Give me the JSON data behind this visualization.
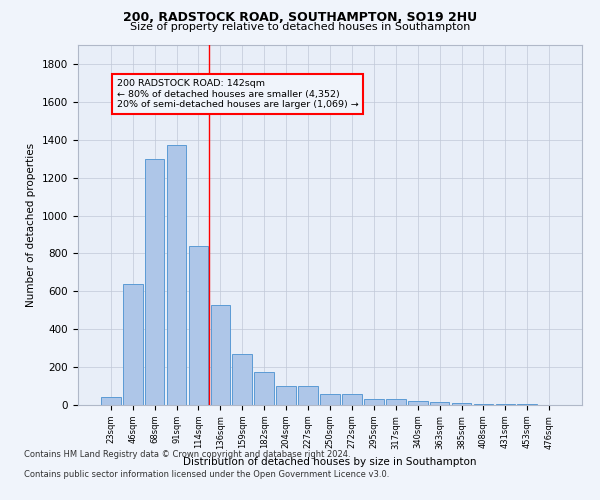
{
  "title1": "200, RADSTOCK ROAD, SOUTHAMPTON, SO19 2HU",
  "title2": "Size of property relative to detached houses in Southampton",
  "xlabel": "Distribution of detached houses by size in Southampton",
  "ylabel": "Number of detached properties",
  "categories": [
    "23sqm",
    "46sqm",
    "68sqm",
    "91sqm",
    "114sqm",
    "136sqm",
    "159sqm",
    "182sqm",
    "204sqm",
    "227sqm",
    "250sqm",
    "272sqm",
    "295sqm",
    "317sqm",
    "340sqm",
    "363sqm",
    "385sqm",
    "408sqm",
    "431sqm",
    "453sqm",
    "476sqm"
  ],
  "values": [
    40,
    640,
    1300,
    1370,
    840,
    530,
    270,
    175,
    100,
    100,
    60,
    60,
    30,
    30,
    22,
    15,
    10,
    5,
    5,
    3,
    2
  ],
  "bar_color": "#aec6e8",
  "bar_edge_color": "#5b9bd5",
  "vline_x_index": 5,
  "vline_color": "red",
  "annotation_line1": "200 RADSTOCK ROAD: 142sqm",
  "annotation_line2": "← 80% of detached houses are smaller (4,352)",
  "annotation_line3": "20% of semi-detached houses are larger (1,069) →",
  "annotation_box_color": "red",
  "ylim": [
    0,
    1900
  ],
  "yticks": [
    0,
    200,
    400,
    600,
    800,
    1000,
    1200,
    1400,
    1600,
    1800
  ],
  "footer1": "Contains HM Land Registry data © Crown copyright and database right 2024.",
  "footer2": "Contains public sector information licensed under the Open Government Licence v3.0.",
  "bg_color": "#f0f4fb",
  "plot_bg_color": "#e8eef8",
  "grid_color": "#c0c8d8"
}
